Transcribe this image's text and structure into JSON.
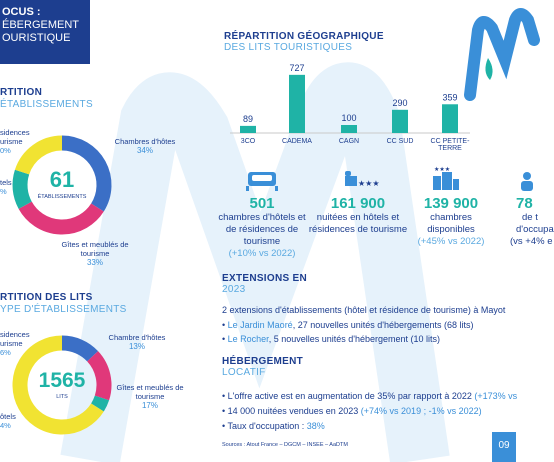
{
  "header": {
    "title_lines": [
      "OCUS :",
      "ÉBERGEMENT",
      "OURISTIQUE"
    ]
  },
  "chart_data": [
    {
      "type": "bar",
      "title": "RÉPARTITION GÉOGRAPHIQUE",
      "subtitle": "DES LITS TOURISTIQUES",
      "categories": [
        "3CO",
        "CADEMA",
        "CAGN",
        "CC SUD",
        "CC PETITE-TERRE"
      ],
      "values": [
        89,
        727,
        100,
        290,
        359
      ],
      "color": "#1fb3a6"
    },
    {
      "type": "donut",
      "title": "RTITION",
      "subtitle": "ÉTABLISSEMENTS",
      "center_value": 61,
      "center_label": "ÉTABLISSEMENTS",
      "categories": [
        "Chambres d'hôtes",
        "Gîtes et meublés de tourisme",
        null,
        null
      ],
      "values": [
        34,
        33,
        13,
        20
      ],
      "value_labels": [
        "34%",
        "33%",
        null,
        null
      ],
      "colors": [
        "#3b6fc6",
        "#e0387a",
        "#1fb3a6",
        "#f1e332"
      ],
      "cropped_labels": [
        [
          "sidences",
          "urisme",
          "0%"
        ],
        [
          "tels",
          "%"
        ]
      ]
    },
    {
      "type": "donut",
      "title": "RTITION DES LITS",
      "subtitle": "YPE D'ÉTABLISSEMENTS",
      "center_value": 1565,
      "center_label": "LITS",
      "categories": [
        "Chambre d'hôtes",
        "Gîtes et meublés de tourisme",
        null,
        null
      ],
      "values": [
        13,
        17,
        4,
        66
      ],
      "value_labels": [
        "13%",
        "17%",
        null,
        null
      ],
      "colors": [
        "#3b6fc6",
        "#e0387a",
        "#1fb3a6",
        "#f1e332"
      ],
      "cropped_labels": [
        [
          "sidences",
          "urisme",
          "6%"
        ],
        [
          "ôtels",
          "4%"
        ]
      ]
    }
  ],
  "stats": [
    {
      "value": "501",
      "text": "chambres d'hôtels et de résidences de tourisme",
      "note": "(+10% vs 2022)"
    },
    {
      "value": "161 900",
      "text": "nuitées en hôtels et résidences de tourisme",
      "note": null
    },
    {
      "value": "139 900",
      "text": "chambres disponibles",
      "note": "(+45% vs 2022)"
    },
    {
      "value": "78",
      "lines": [
        "de t",
        "d'occupa",
        "(vs +4% e"
      ]
    }
  ],
  "extensions": {
    "title": "EXTENSIONS EN",
    "subtitle": "2023",
    "intro": "2 extensions d'établissements (hôtel et résidence de tourisme) à Mayot",
    "bullets": [
      [
        "Le Jardin Maoré",
        ", 27 nouvelles unités d'hébergements (68 lits)"
      ],
      [
        "Le Rocher",
        ", 5 nouvelles unités d'hébergement (10 lits)"
      ]
    ]
  },
  "locatif": {
    "title": "HÉBERGEMENT",
    "subtitle": "LOCATIF",
    "bullets": [
      [
        "L'offre active est en augmentation de 35% par rapport à 2022 ",
        "(+173% vs"
      ],
      [
        "14 000 nuitées vendues en 2023 ",
        "(+74% vs 2019 ; -1% vs 2022)"
      ],
      [
        "Taux d'occupation : ",
        "38%"
      ]
    ]
  },
  "sources": "Sources : Atout France – DGCM – INSEE – AaDTM",
  "page_number": "09"
}
